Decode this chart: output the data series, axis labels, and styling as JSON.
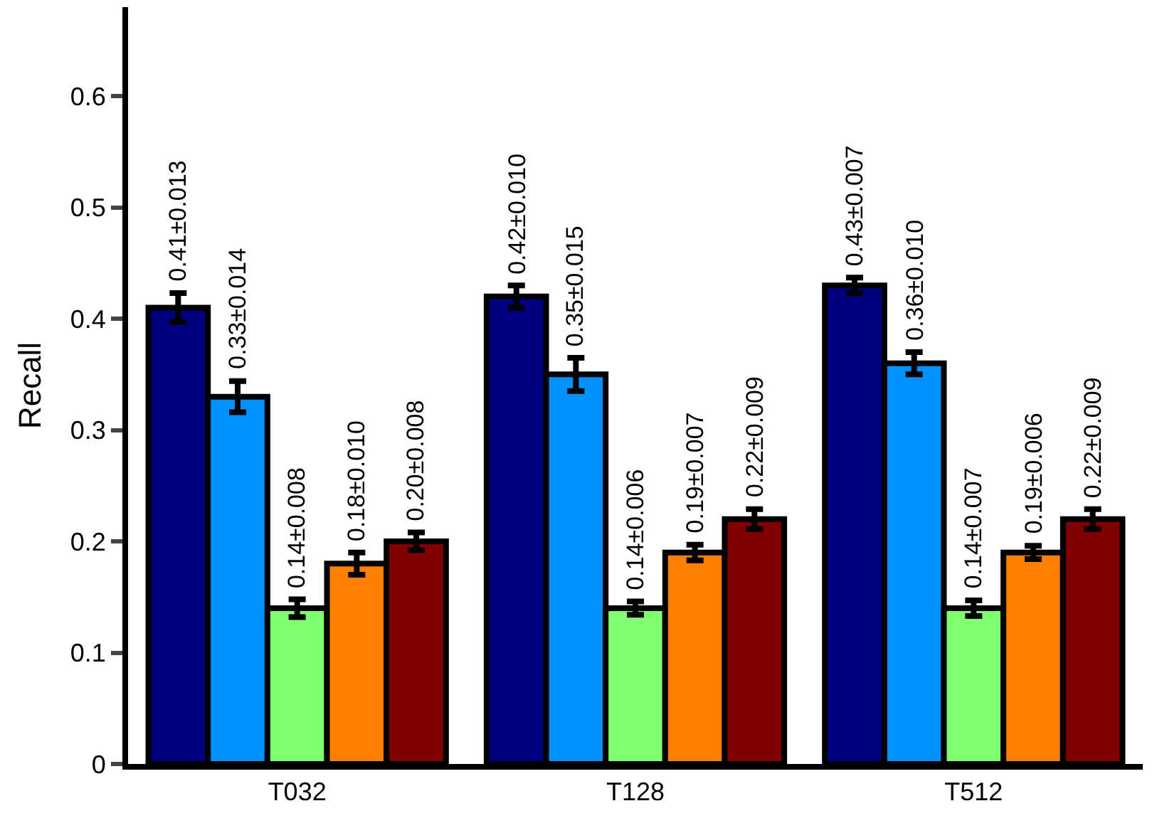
{
  "chart_data": {
    "type": "bar",
    "ylabel": "Recall",
    "categories": [
      "T032",
      "T128",
      "T512"
    ],
    "series": [
      {
        "color": "#00007f",
        "values": [
          0.41,
          0.42,
          0.43
        ],
        "errors": [
          0.013,
          0.01,
          0.007
        ],
        "value_labels": [
          "0.41±0.013",
          "0.42±0.010",
          "0.43±0.007"
        ]
      },
      {
        "color": "#0090ff",
        "values": [
          0.33,
          0.35,
          0.36
        ],
        "errors": [
          0.014,
          0.015,
          0.01
        ],
        "value_labels": [
          "0.33±0.014",
          "0.35±0.015",
          "0.36±0.010"
        ]
      },
      {
        "color": "#80ff70",
        "values": [
          0.14,
          0.14,
          0.14
        ],
        "errors": [
          0.008,
          0.006,
          0.007
        ],
        "value_labels": [
          "0.14±0.008",
          "0.14±0.006",
          "0.14±0.007"
        ]
      },
      {
        "color": "#ff7f00",
        "values": [
          0.18,
          0.19,
          0.19
        ],
        "errors": [
          0.01,
          0.007,
          0.006
        ],
        "value_labels": [
          "0.18±0.010",
          "0.19±0.007",
          "0.19±0.006"
        ]
      },
      {
        "color": "#7f0000",
        "values": [
          0.2,
          0.22,
          0.22
        ],
        "errors": [
          0.008,
          0.009,
          0.009
        ],
        "value_labels": [
          "0.20±0.008",
          "0.22±0.009",
          "0.22±0.009"
        ]
      }
    ],
    "ylim": [
      0,
      0.68
    ],
    "yticks": [
      0,
      0.1,
      0.2,
      0.3,
      0.4,
      0.5,
      0.6
    ]
  }
}
